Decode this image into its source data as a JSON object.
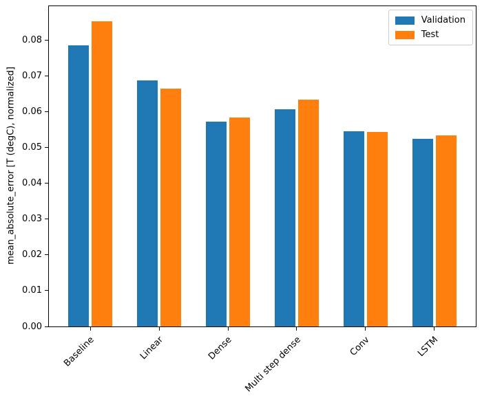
{
  "chart_data": {
    "type": "bar",
    "title": "",
    "xlabel": "",
    "ylabel": "mean_absolute_error [T (degC), normalized]",
    "categories": [
      "Baseline",
      "Linear",
      "Dense",
      "Multi step dense",
      "Conv",
      "LSTM"
    ],
    "series": [
      {
        "name": "Validation",
        "color": "#1f77b4",
        "values": [
          0.0785,
          0.0687,
          0.0573,
          0.0607,
          0.0546,
          0.0524
        ]
      },
      {
        "name": "Test",
        "color": "#ff7f0e",
        "values": [
          0.0852,
          0.0665,
          0.0583,
          0.0634,
          0.0544,
          0.0534
        ]
      }
    ],
    "ylim": [
      0,
      0.0895
    ],
    "ytick_labels": [
      "0.00",
      "0.01",
      "0.02",
      "0.03",
      "0.04",
      "0.05",
      "0.06",
      "0.07",
      "0.08"
    ],
    "x_tick_rotation_deg": 45,
    "grid": false,
    "legend_position": "upper right",
    "legend_entries": [
      "Validation",
      "Test"
    ]
  }
}
